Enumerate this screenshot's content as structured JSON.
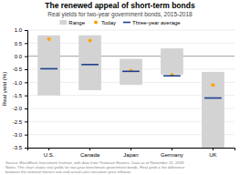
{
  "chart_data": {
    "type": "bar",
    "title": "The renewed appeal of short-term bonds",
    "subtitle": "Real yields for two-year government bonds, 2015-2018",
    "y_label": "Real yield (%)",
    "source": "Source: BlackRock Investment Institute, with data from Thomson Reuters. Data as of November 21, 2018.\nNotes: The chart shows real yields for two-year benchmark government bonds. Real yield is the difference\nbetween the nominal interest rate and actual core consumer price inflation.",
    "categories": [
      "U.S.",
      "Canada",
      "Japan",
      "Germany",
      "UK"
    ],
    "series": [
      {
        "name": "Range",
        "type": "range_bar",
        "color": "#d3d3d3",
        "low": [
          -1.5,
          -1.3,
          -1.1,
          -0.7,
          -3.5
        ],
        "high": [
          0.8,
          0.8,
          -0.1,
          0.3,
          -0.6
        ]
      },
      {
        "name": "Today",
        "type": "scatter",
        "marker": "circle",
        "color": "#FFA500",
        "values": [
          0.65,
          0.6,
          -0.55,
          -0.72,
          -1.1
        ]
      },
      {
        "name": "Three-year average",
        "type": "scatter",
        "marker": "dash",
        "color": "#1f3f8f",
        "values": [
          -0.48,
          -0.32,
          -0.58,
          -0.75,
          -1.6
        ]
      }
    ],
    "ylim": [
      -3.5,
      1.0
    ],
    "yticks": [
      {
        "value": 1.0,
        "label": "1.0"
      },
      0.5,
      {
        "value": 0.0,
        "label": "0.0"
      },
      -0.5,
      {
        "value": -1.0,
        "label": "-1.0"
      },
      -1.5,
      {
        "value": -2.0,
        "label": "-2.0"
      },
      -2.5,
      {
        "value": -3.0,
        "label": "-3.0"
      },
      -3.5
    ],
    "grid": true,
    "legend": "top"
  }
}
